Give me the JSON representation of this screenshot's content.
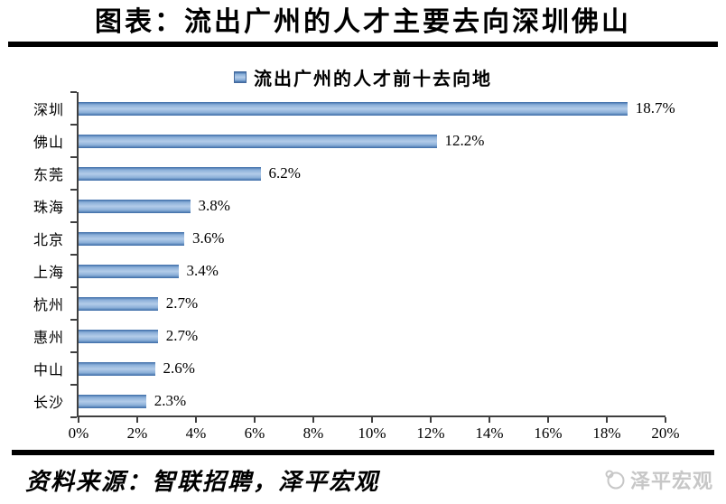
{
  "header": {
    "title": "图表：流出广州的人才主要去向深圳佛山"
  },
  "chart_data": {
    "type": "bar",
    "orientation": "horizontal",
    "title": "流出广州的人才前十去向地",
    "legend_position": "top-center",
    "categories": [
      "深圳",
      "佛山",
      "东莞",
      "珠海",
      "北京",
      "上海",
      "杭州",
      "惠州",
      "中山",
      "长沙"
    ],
    "values": [
      18.7,
      12.2,
      6.2,
      3.8,
      3.6,
      3.4,
      2.7,
      2.7,
      2.6,
      2.3
    ],
    "value_labels": [
      "18.7%",
      "12.2%",
      "6.2%",
      "3.8%",
      "3.6%",
      "3.4%",
      "2.7%",
      "2.7%",
      "2.6%",
      "2.3%"
    ],
    "xlim": [
      0,
      20
    ],
    "x_ticks": [
      "0%",
      "2%",
      "4%",
      "6%",
      "8%",
      "10%",
      "12%",
      "14%",
      "16%",
      "18%",
      "20%"
    ],
    "grid": false
  },
  "colors": {
    "bar_edge": "#3a6aa5",
    "bar_light": "#8aafd8",
    "bar_mid": "#b3cce9",
    "axis": "#3f3f3f",
    "rule": "#000000",
    "watermark": "#c7c7c7"
  },
  "footer": {
    "source": "资料来源：智联招聘，泽平宏观",
    "watermark": "泽平宏观"
  }
}
